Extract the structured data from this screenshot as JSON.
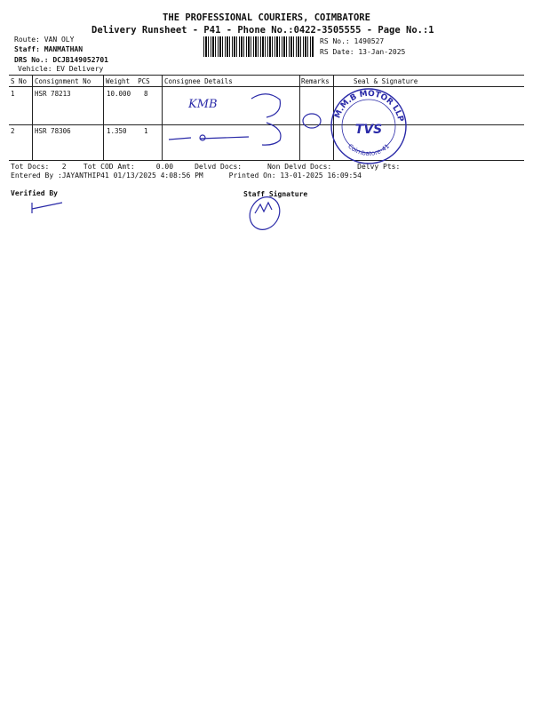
{
  "header": {
    "title": "THE PROFESSIONAL COURIERS, COIMBATORE",
    "subtitle": "Delivery Runsheet - P41 - Phone No.:0422-3505555 - Page No.:1"
  },
  "info": {
    "route": "Route: VAN OLY",
    "staff": "Staff: MANMATHAN",
    "drs": "DRS No.: DCJB149052701",
    "vehicle": "Vehicle: EV Delivery",
    "rs_no": "RS No.: 1490527",
    "rs_date": "RS Date: 13-Jan-2025"
  },
  "table": {
    "headers": [
      "S No",
      "Consignment No",
      "Weight  PCS",
      "Consignee Details",
      "Remarks",
      "Seal & Signature"
    ],
    "rows": [
      {
        "sno": "1",
        "consignment": "HSR 78213",
        "weight": "10.000",
        "pcs": "8",
        "consignee_handwriting": "KMB"
      },
      {
        "sno": "2",
        "consignment": "HSR 78306",
        "weight": "1.350",
        "pcs": "1"
      }
    ]
  },
  "footer": {
    "totals": "Tot Docs:   2    Tot COD Amt:     0.00     Delvd Docs:      Non Delvd Docs:      Delvy Pts:",
    "entered": "Entered By :JAYANTHIP41 01/13/2025 4:08:56 PM      Printed On: 13-01-2025 16:09:54",
    "verified_by": "Verified By",
    "staff_signature": "Staff Signature"
  },
  "stamp": {
    "top": "M.M.B MOTOR LLP",
    "center": "TVS",
    "bottom": "Coimbatore-41",
    "color": "#2a2aa8"
  },
  "ink_color": "#2a2aa8"
}
